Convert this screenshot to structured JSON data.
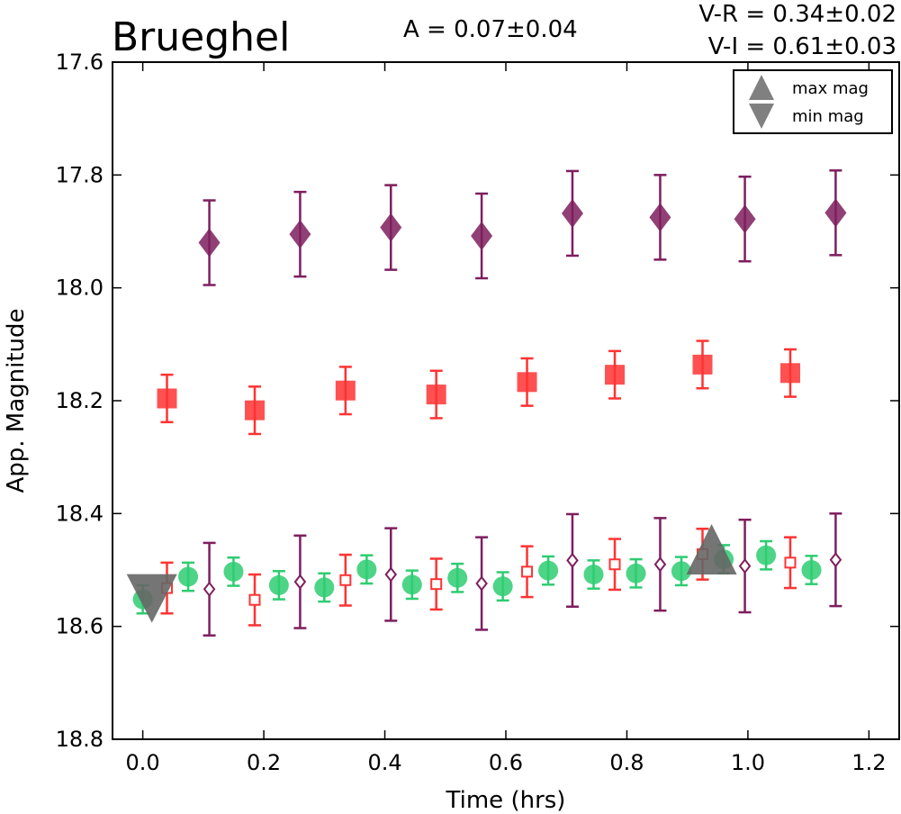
{
  "chart_data": {
    "type": "scatter",
    "title": "Brueghel",
    "annotations": {
      "amplitude": "A  = 0.07±0.04",
      "vr": "V-R = 0.34±0.02",
      "vi": "V-I  = 0.61±0.03"
    },
    "xlabel": "Time (hrs)",
    "ylabel": "App. Magnitude",
    "xlim": [
      -0.05,
      1.25
    ],
    "ylim": [
      18.8,
      17.6
    ],
    "y_inverted": true,
    "xticks": [
      "0.0",
      "0.2",
      "0.4",
      "0.6",
      "0.8",
      "1.0",
      "1.2"
    ],
    "xtick_values": [
      0.0,
      0.2,
      0.4,
      0.6,
      0.8,
      1.0,
      1.2
    ],
    "yticks": [
      "17.6",
      "17.8",
      "18.0",
      "18.2",
      "18.4",
      "18.6",
      "18.8"
    ],
    "ytick_values": [
      17.6,
      17.8,
      18.0,
      18.2,
      18.4,
      18.6,
      18.8
    ],
    "grid": false,
    "legend": {
      "placement": "top-right",
      "entries": [
        {
          "label": "max mag",
          "marker": "triangle-up"
        },
        {
          "label": "min mag",
          "marker": "triangle-down"
        }
      ]
    },
    "series": [
      {
        "marker": "circle",
        "fill": "filled",
        "color": "#2ecc71",
        "x": [
          0.0,
          0.075,
          0.15,
          0.225,
          0.3,
          0.37,
          0.445,
          0.52,
          0.595,
          0.67,
          0.745,
          0.815,
          0.89,
          0.96,
          1.03,
          1.105
        ],
        "y": [
          18.552,
          18.512,
          18.503,
          18.527,
          18.531,
          18.499,
          18.526,
          18.514,
          18.529,
          18.501,
          18.508,
          18.506,
          18.502,
          18.481,
          18.474,
          18.5
        ],
        "err": [
          0.025,
          0.025,
          0.025,
          0.025,
          0.025,
          0.025,
          0.025,
          0.025,
          0.025,
          0.025,
          0.025,
          0.025,
          0.025,
          0.025,
          0.025,
          0.025
        ]
      },
      {
        "marker": "square",
        "fill": "open",
        "color": "#ff3333",
        "x": [
          0.04,
          0.185,
          0.335,
          0.485,
          0.635,
          0.78,
          0.925,
          1.07
        ],
        "y": [
          18.532,
          18.553,
          18.518,
          18.525,
          18.503,
          18.49,
          18.472,
          18.487
        ],
        "err": [
          0.045,
          0.045,
          0.045,
          0.045,
          0.045,
          0.045,
          0.045,
          0.045
        ]
      },
      {
        "marker": "diamond",
        "fill": "open",
        "color": "#7e1e5e",
        "x": [
          0.11,
          0.26,
          0.41,
          0.56,
          0.71,
          0.855,
          0.995,
          1.145
        ],
        "y": [
          18.534,
          18.521,
          18.508,
          18.524,
          18.483,
          18.49,
          18.493,
          18.482
        ],
        "err": [
          0.082,
          0.082,
          0.082,
          0.082,
          0.082,
          0.082,
          0.082,
          0.082
        ]
      },
      {
        "marker": "square",
        "fill": "filled",
        "color": "#ff3333",
        "x": [
          0.04,
          0.185,
          0.335,
          0.485,
          0.635,
          0.78,
          0.925,
          1.07
        ],
        "y": [
          18.196,
          18.217,
          18.182,
          18.189,
          18.167,
          18.154,
          18.136,
          18.151
        ],
        "err": [
          0.042,
          0.042,
          0.042,
          0.042,
          0.042,
          0.042,
          0.042,
          0.042
        ]
      },
      {
        "marker": "diamond",
        "fill": "filled",
        "color": "#7e1e5e",
        "x": [
          0.11,
          0.26,
          0.41,
          0.56,
          0.71,
          0.855,
          0.995,
          1.145
        ],
        "y": [
          17.92,
          17.905,
          17.893,
          17.908,
          17.868,
          17.875,
          17.878,
          17.867
        ],
        "err": [
          0.075,
          0.075,
          0.075,
          0.075,
          0.075,
          0.075,
          0.075,
          0.075
        ]
      }
    ],
    "extrema": [
      {
        "label": "min mag",
        "marker": "triangle-down",
        "x": 0.015,
        "y": 18.552,
        "color": "#666666"
      },
      {
        "label": "max mag",
        "marker": "triangle-up",
        "x": 0.94,
        "y": 18.492,
        "color": "#666666"
      }
    ]
  }
}
